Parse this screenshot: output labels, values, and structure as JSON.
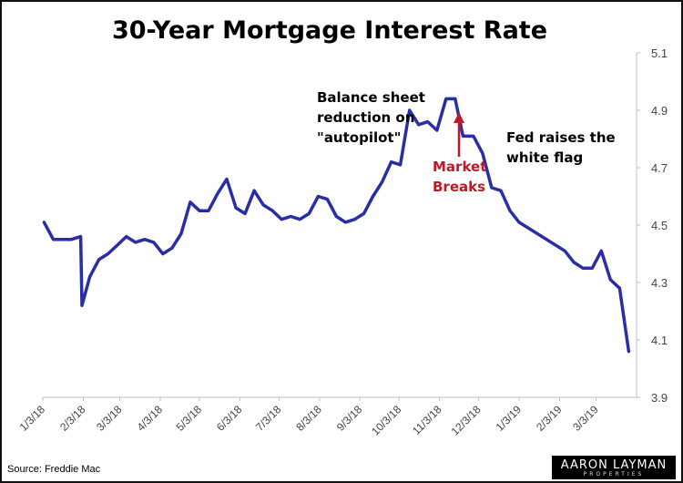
{
  "chart_data": {
    "type": "line",
    "title": "30-Year Mortgage Interest Rate",
    "ylim": [
      3.9,
      5.1
    ],
    "yticks": [
      3.9,
      4.1,
      4.3,
      4.5,
      4.7,
      4.9,
      5.1
    ],
    "ytick_labels": [
      "3.9",
      "4.1",
      "4.3",
      "4.5",
      "4.7",
      "4.9",
      "5.1"
    ],
    "grid": false,
    "xticks": [
      "1/3/18",
      "2/3/18",
      "3/3/18",
      "4/3/18",
      "5/3/18",
      "6/3/18",
      "7/3/18",
      "8/3/18",
      "9/3/18",
      "10/3/18",
      "11/3/18",
      "12/3/18",
      "1/3/19",
      "2/3/19",
      "3/3/19"
    ],
    "series": [
      {
        "color": "#2a2ea6",
        "dates": [
          "2018-01-04",
          "2018-01-11",
          "2018-01-18",
          "2018-01-25",
          "2018-02-01",
          "2018-02-02",
          "2018-02-08",
          "2018-02-15",
          "2018-02-22",
          "2018-03-01",
          "2018-03-08",
          "2018-03-15",
          "2018-03-22",
          "2018-03-29",
          "2018-04-05",
          "2018-04-12",
          "2018-04-19",
          "2018-04-26",
          "2018-05-03",
          "2018-05-10",
          "2018-05-17",
          "2018-05-24",
          "2018-05-31",
          "2018-06-07",
          "2018-06-14",
          "2018-06-21",
          "2018-06-28",
          "2018-07-05",
          "2018-07-12",
          "2018-07-19",
          "2018-07-26",
          "2018-08-02",
          "2018-08-09",
          "2018-08-16",
          "2018-08-23",
          "2018-08-30",
          "2018-09-06",
          "2018-09-13",
          "2018-09-20",
          "2018-09-27",
          "2018-10-04",
          "2018-10-11",
          "2018-10-18",
          "2018-10-25",
          "2018-11-01",
          "2018-11-08",
          "2018-11-15",
          "2018-11-21",
          "2018-11-29",
          "2018-12-06",
          "2018-12-13",
          "2018-12-20",
          "2018-12-27",
          "2019-01-03",
          "2019-02-07",
          "2019-02-14",
          "2019-02-21",
          "2019-02-28",
          "2019-03-07",
          "2019-03-14",
          "2019-03-21",
          "2019-03-28"
        ],
        "values": [
          4.51,
          4.45,
          4.45,
          4.45,
          4.46,
          4.22,
          4.32,
          4.38,
          4.4,
          4.43,
          4.46,
          4.44,
          4.45,
          4.44,
          4.4,
          4.42,
          4.47,
          4.58,
          4.55,
          4.55,
          4.61,
          4.66,
          4.56,
          4.54,
          4.62,
          4.57,
          4.55,
          4.52,
          4.53,
          4.52,
          4.54,
          4.6,
          4.59,
          4.53,
          4.51,
          4.52,
          4.54,
          4.6,
          4.65,
          4.72,
          4.71,
          4.9,
          4.85,
          4.86,
          4.83,
          4.94,
          4.94,
          4.81,
          4.81,
          4.75,
          4.63,
          4.62,
          4.55,
          4.51,
          4.41,
          4.37,
          4.35,
          4.35,
          4.41,
          4.31,
          4.28,
          4.06
        ]
      }
    ],
    "annotations": [
      {
        "lines": [
          "Balance sheet",
          "reduction on",
          "\"autopilot\""
        ],
        "color": "#000000"
      },
      {
        "lines": [
          "Market",
          "Breaks"
        ],
        "color": "#c0182b"
      },
      {
        "lines": [
          "Fed raises the",
          "white flag"
        ],
        "color": "#000000"
      }
    ]
  },
  "source": "Source: Freddie Mac",
  "logo": {
    "line1": "AARON LAYMAN",
    "line2": "PROPERTIES"
  }
}
